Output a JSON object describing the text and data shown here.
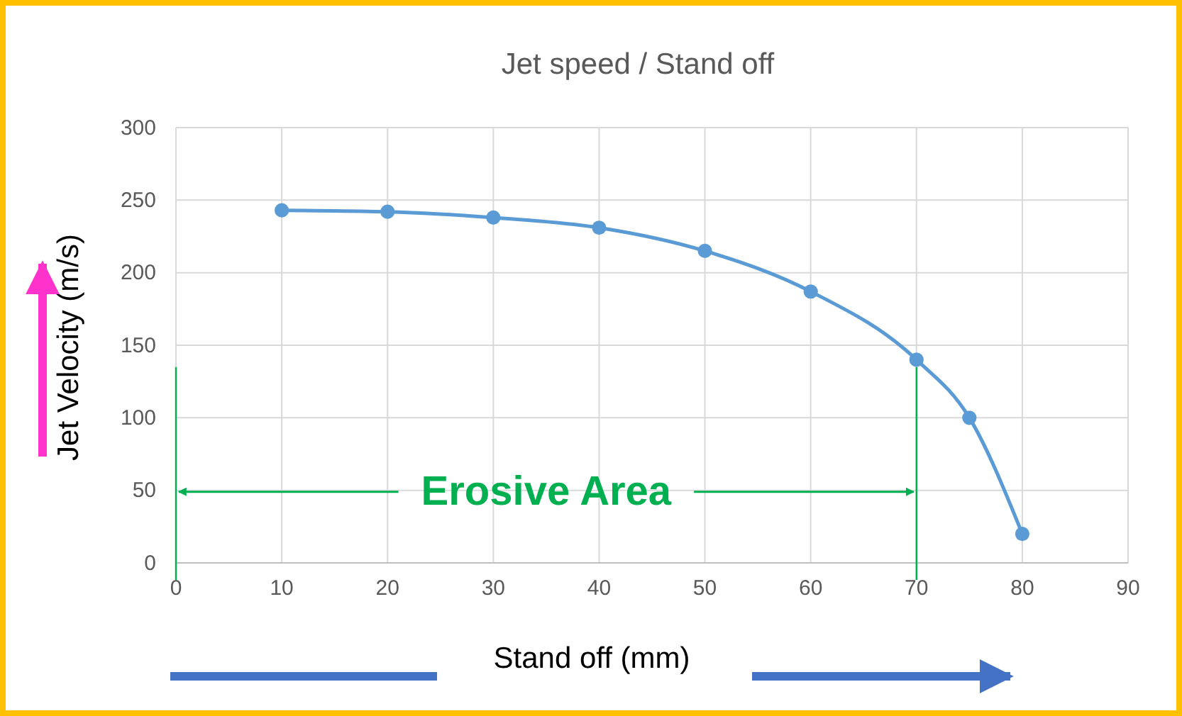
{
  "chart_data": {
    "type": "line",
    "title": "Jet speed / Stand off",
    "xlabel": "Stand off (mm)",
    "ylabel": "Jet Velocity (m/s)",
    "x": [
      10,
      20,
      30,
      40,
      50,
      60,
      70,
      75,
      80
    ],
    "series": [
      {
        "color": "#5b9bd5",
        "values": [
          243,
          242,
          238,
          231,
          215,
          187,
          140,
          100,
          20
        ]
      }
    ],
    "xlim": [
      0,
      90
    ],
    "xticks": [
      0,
      10,
      20,
      30,
      40,
      50,
      60,
      70,
      80,
      90
    ],
    "ylim": [
      0,
      300
    ],
    "yticks": [
      0,
      50,
      100,
      150,
      200,
      250,
      300
    ],
    "grid": true,
    "marker": "circle",
    "ref_lines": [
      {
        "axis": "x",
        "value": 0,
        "color": "#00b050"
      },
      {
        "axis": "x",
        "value": 70,
        "color": "#00b050"
      }
    ],
    "annotations": [
      {
        "text": "Erosive Area",
        "x": 70,
        "y": 50
      }
    ]
  }
}
